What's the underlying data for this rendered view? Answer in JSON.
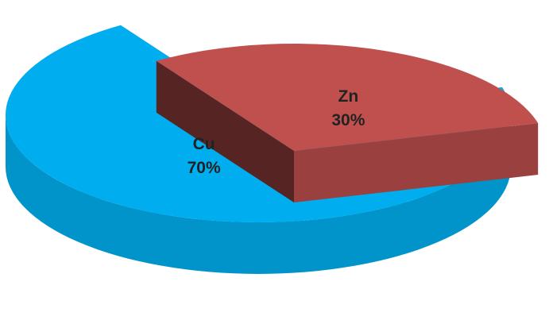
{
  "chart_data": {
    "type": "pie",
    "categories": [
      "Cu",
      "Zn"
    ],
    "values": [
      70,
      30
    ],
    "value_labels": [
      "70%",
      "30%"
    ],
    "colors": [
      "#00aeef",
      "#c0504d"
    ]
  }
}
